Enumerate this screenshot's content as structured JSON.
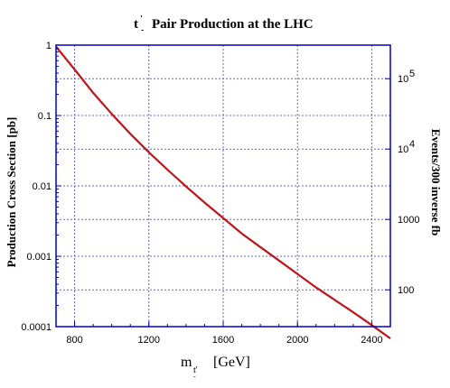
{
  "chart_data": {
    "type": "line",
    "title": {
      "prefix": "t",
      "prime": "'",
      "sub": "-",
      "rest": "Pair Production at the LHC"
    },
    "xlabel": {
      "prefix": "m",
      "sub": "t'",
      "subsub": "-",
      "rest": "[GeV]"
    },
    "ylabel": "Production Cross Section [pb]",
    "y2label": "Events/300 inverse fb",
    "xlim": [
      700,
      2500
    ],
    "ylim": [
      0.0001,
      1
    ],
    "yscale": "log",
    "y2scale": "log",
    "xticks": [
      800,
      1200,
      1600,
      2000,
      2400
    ],
    "xtick_labels": [
      "800",
      "1200",
      "1600",
      "2000",
      "2400"
    ],
    "yticks": [
      1,
      0.1,
      0.01,
      0.001,
      0.0001
    ],
    "ytick_labels": [
      "1",
      "0.1",
      "0.01",
      "0.001",
      "0.0001"
    ],
    "y2ticks": [
      {
        "events": 100000,
        "base": "10",
        "exp": "5"
      },
      {
        "events": 10000,
        "base": "10",
        "exp": "4"
      },
      {
        "events": 1000,
        "label": "1000"
      },
      {
        "events": 100,
        "label": "100"
      }
    ],
    "grid": true,
    "series": [
      {
        "color": "#c0141a",
        "x": [
          700,
          800,
          900,
          1000,
          1100,
          1200,
          1300,
          1400,
          1500,
          1600,
          1700,
          1800,
          1900,
          2000,
          2100,
          2200,
          2300,
          2400,
          2500
        ],
        "y": [
          0.95,
          0.45,
          0.21,
          0.105,
          0.055,
          0.03,
          0.017,
          0.0098,
          0.0058,
          0.0035,
          0.0021,
          0.00135,
          0.00087,
          0.00056,
          0.00036,
          0.00024,
          0.00016,
          0.000105,
          6.8e-05
        ]
      }
    ],
    "colors": {
      "axis": "#0000cc",
      "grid": "#6666cc",
      "curve": "#c0141a"
    }
  }
}
